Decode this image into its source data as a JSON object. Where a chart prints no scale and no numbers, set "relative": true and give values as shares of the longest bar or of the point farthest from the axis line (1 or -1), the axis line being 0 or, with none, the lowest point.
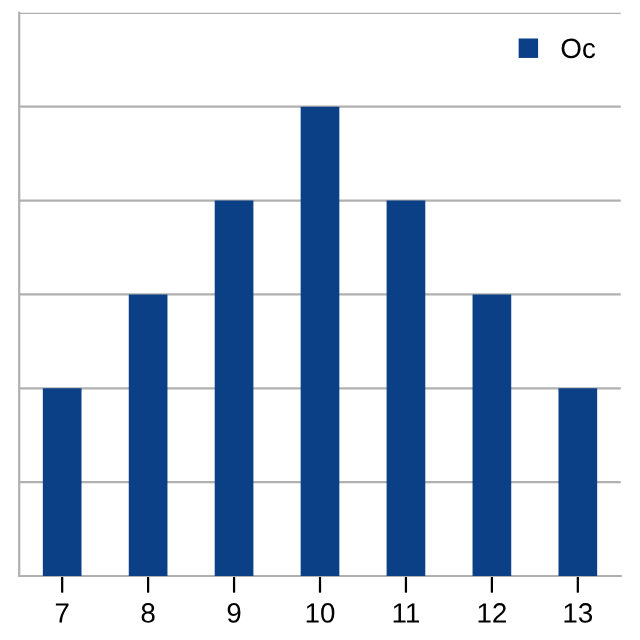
{
  "chart_data": {
    "type": "bar",
    "categories": [
      "7",
      "8",
      "9",
      "10",
      "11",
      "12",
      "13"
    ],
    "relative": true,
    "series": [
      {
        "name": "Oc",
        "color": "#0b3f86",
        "values": [
          0.4,
          0.6,
          0.8,
          1,
          0.8,
          0.6,
          0.4
        ]
      }
    ],
    "grid": "y",
    "legend": "top right"
  }
}
